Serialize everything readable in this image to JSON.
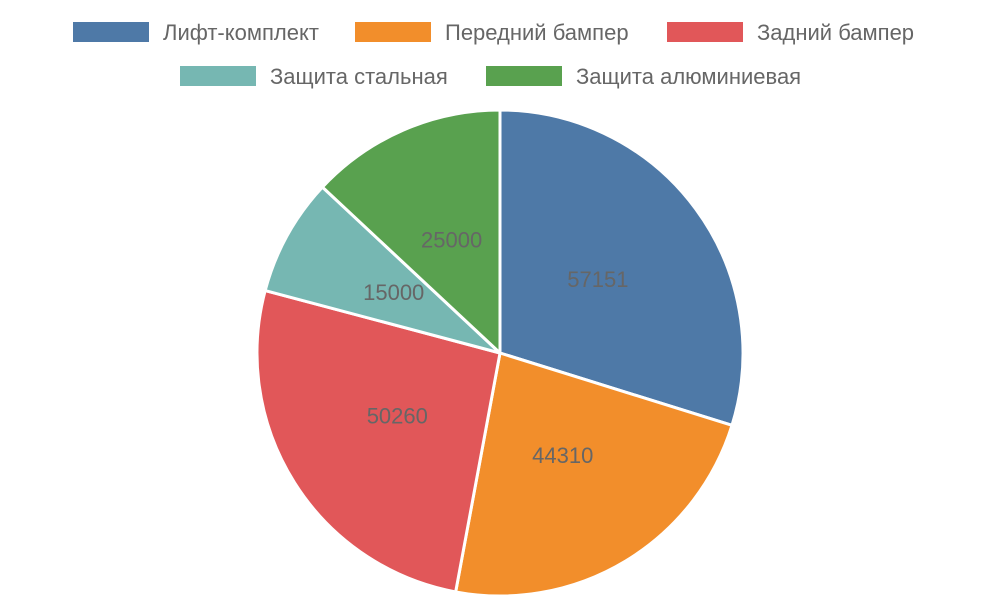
{
  "chart_data": {
    "type": "pie",
    "title": "",
    "legend_position": "top",
    "categories": [
      "Лифт-комплект",
      "Передний бампер",
      "Задний бампер",
      "Защита стальная",
      "Защита алюминиевая"
    ],
    "values": [
      57151,
      44310,
      50260,
      15000,
      25000
    ],
    "colors": [
      "#4e79a7",
      "#f28e2b",
      "#e15759",
      "#76b7b2",
      "#59a14f"
    ]
  }
}
